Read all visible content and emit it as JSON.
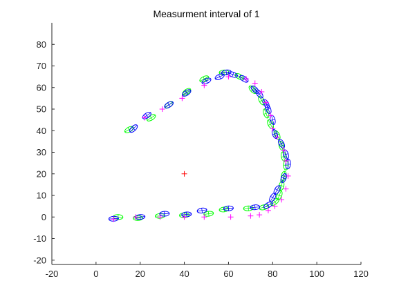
{
  "chart_data": {
    "type": "scatter",
    "title": "Measurment interval of 1",
    "xlabel": "",
    "ylabel": "",
    "xlim": [
      -20,
      120
    ],
    "ylim": [
      -22,
      90
    ],
    "xticks": [
      -20,
      0,
      20,
      40,
      60,
      80,
      100,
      120
    ],
    "yticks": [
      -20,
      -10,
      0,
      10,
      20,
      30,
      40,
      50,
      60,
      70,
      80
    ],
    "grid": false,
    "colors": {
      "axes": "#262626",
      "background": "#ffffff",
      "estimate": "#0000ff",
      "truth": "#00ff00",
      "measurement": "#ff00ff",
      "sensor": "#ff0000"
    },
    "series": [
      {
        "marker": "ellipse-with-cross",
        "color": "#00ff00",
        "points": [
          [
            10,
            0
          ],
          [
            19,
            -0.5
          ],
          [
            29,
            0.5
          ],
          [
            40,
            0.8
          ],
          [
            51,
            1.5
          ],
          [
            58,
            3.5
          ],
          [
            69,
            4
          ],
          [
            76,
            4.5
          ],
          [
            81,
            7
          ],
          [
            83,
            10
          ],
          [
            84,
            14.5
          ],
          [
            85,
            19
          ],
          [
            86,
            24
          ],
          [
            85,
            28
          ],
          [
            84,
            33
          ],
          [
            82,
            38
          ],
          [
            79,
            43
          ],
          [
            77,
            48
          ],
          [
            75,
            54
          ],
          [
            71,
            59
          ],
          [
            65,
            65
          ],
          [
            58,
            67
          ],
          [
            49,
            64
          ],
          [
            41,
            58
          ],
          [
            33,
            52
          ],
          [
            25,
            46
          ],
          [
            15,
            40.5
          ]
        ]
      },
      {
        "marker": "ellipse-with-cross",
        "color": "#0000ff",
        "points": [
          [
            8,
            -0.8
          ],
          [
            20,
            0
          ],
          [
            31,
            1.5
          ],
          [
            41,
            1.2
          ],
          [
            48,
            3
          ],
          [
            60,
            4
          ],
          [
            72,
            4.5
          ],
          [
            78,
            5.5
          ],
          [
            80,
            9
          ],
          [
            82,
            12.5
          ],
          [
            85,
            18
          ],
          [
            87,
            24.5
          ],
          [
            86,
            29
          ],
          [
            84,
            34
          ],
          [
            81,
            38.5
          ],
          [
            80,
            45
          ],
          [
            78,
            50
          ],
          [
            77,
            52.5
          ],
          [
            74,
            57
          ],
          [
            72,
            59
          ],
          [
            67,
            64
          ],
          [
            62,
            66
          ],
          [
            59,
            67
          ],
          [
            56,
            65
          ],
          [
            50,
            63
          ],
          [
            41,
            57.5
          ],
          [
            33,
            52
          ],
          [
            23,
            47
          ],
          [
            17,
            41
          ]
        ]
      },
      {
        "marker": "plus",
        "color": "#ff00ff",
        "points": [
          [
            8,
            -1
          ],
          [
            18,
            0
          ],
          [
            29,
            0
          ],
          [
            40,
            0
          ],
          [
            49,
            0
          ],
          [
            61,
            0
          ],
          [
            70,
            0.5
          ],
          [
            74,
            1
          ],
          [
            78,
            3
          ],
          [
            81,
            5
          ],
          [
            84,
            8
          ],
          [
            86,
            13
          ],
          [
            87,
            19
          ],
          [
            86,
            26
          ],
          [
            85,
            31
          ],
          [
            82,
            37
          ],
          [
            80,
            41
          ],
          [
            79,
            47
          ],
          [
            77,
            53
          ],
          [
            75,
            58
          ],
          [
            72,
            62
          ],
          [
            68,
            64
          ],
          [
            60,
            65
          ],
          [
            49,
            61
          ],
          [
            39,
            55
          ],
          [
            30,
            50
          ],
          [
            22,
            46
          ]
        ]
      },
      {
        "marker": "plus",
        "color": "#ff0000",
        "points": [
          [
            40,
            20
          ]
        ]
      }
    ]
  }
}
